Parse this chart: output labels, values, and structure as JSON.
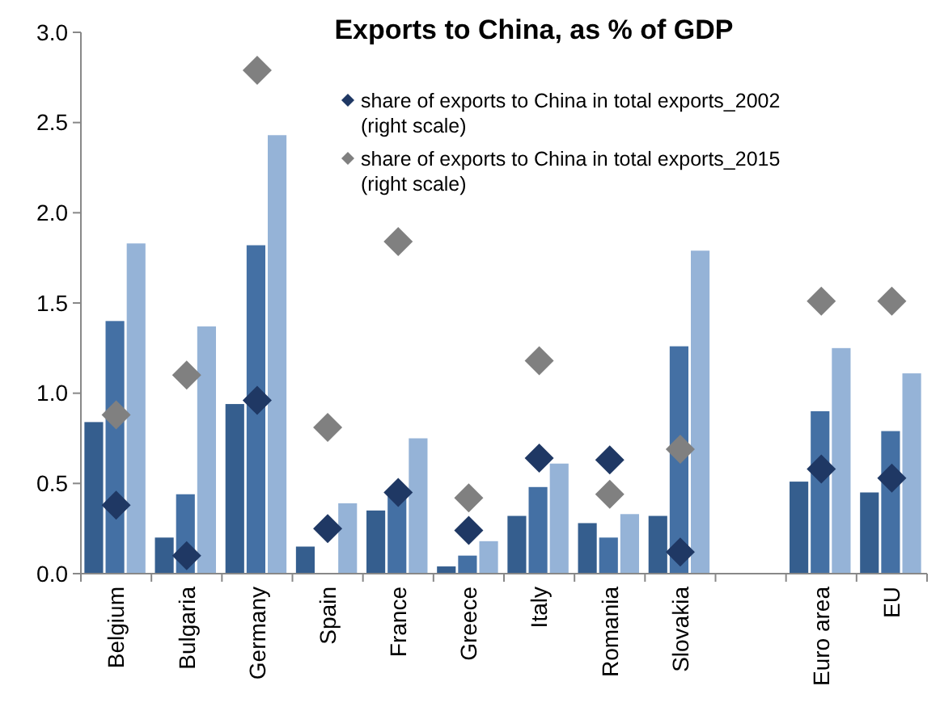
{
  "chart_data": {
    "type": "bar",
    "title": "Exports to China, as % of GDP",
    "categories": [
      "Belgium",
      "Bulgaria",
      "Germany",
      "Spain",
      "France",
      "Greece",
      "Italy",
      "Romania",
      "Slovakia",
      null,
      "Euro area",
      "EU"
    ],
    "series": [
      {
        "color": "#355e8e",
        "values": [
          0.84,
          0.2,
          0.94,
          0.15,
          0.35,
          0.04,
          0.32,
          0.28,
          0.32,
          null,
          0.51,
          0.45
        ]
      },
      {
        "color": "#4470a4",
        "values": [
          1.4,
          0.44,
          1.82,
          null,
          0.45,
          0.1,
          0.48,
          0.2,
          1.26,
          null,
          0.9,
          0.79
        ]
      },
      {
        "color": "#95b3d7",
        "values": [
          1.83,
          1.37,
          2.43,
          0.39,
          0.75,
          0.18,
          0.61,
          0.33,
          1.79,
          null,
          1.25,
          1.11
        ]
      },
      {
        "type": "scatter",
        "name": "share of exports to China in total exports_2002 (right scale)",
        "color": "#1f3864",
        "values": [
          0.38,
          0.1,
          0.96,
          0.25,
          0.45,
          0.24,
          0.64,
          0.63,
          0.12,
          null,
          0.58,
          0.53
        ]
      },
      {
        "type": "scatter",
        "name": "share of exports to China in total exports_2015 (right scale)",
        "color": "#808080",
        "values": [
          0.88,
          1.1,
          2.79,
          0.81,
          1.84,
          0.42,
          1.18,
          0.44,
          0.69,
          null,
          1.51,
          1.51
        ]
      }
    ],
    "ylim": [
      0,
      3
    ],
    "yticks": [
      {
        "value": 0,
        "label": "0.0"
      },
      {
        "value": 0.5,
        "label": "0.5"
      },
      {
        "value": 1,
        "label": "1.0"
      },
      {
        "value": 1.5,
        "label": "1.5"
      },
      {
        "value": 2,
        "label": "2.0"
      },
      {
        "value": 2.5,
        "label": "2.5"
      },
      {
        "value": 3,
        "label": "3.0"
      }
    ],
    "grid": false,
    "legend": "top right",
    "marker": "diamond"
  }
}
